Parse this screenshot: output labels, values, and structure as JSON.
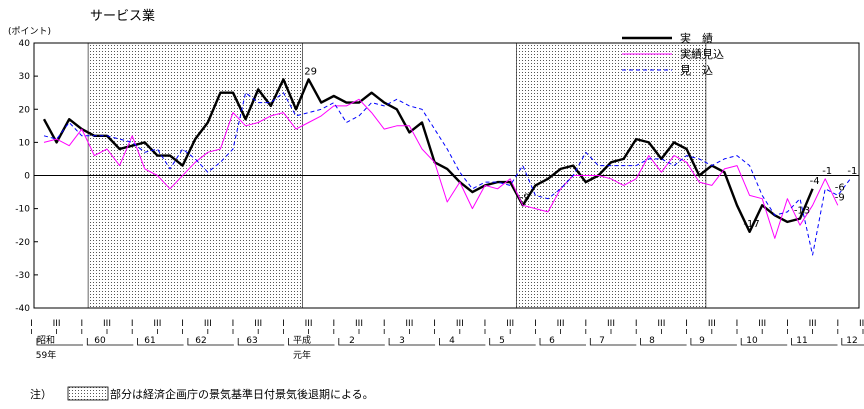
{
  "chart_data": {
    "type": "line",
    "title": "サービス業",
    "ylabel": "(ポイント)",
    "ylim": [
      -40,
      40
    ],
    "yticks": [
      40,
      30,
      20,
      10,
      0,
      -10,
      -20,
      -30,
      -40
    ],
    "quarter_labels": [
      "I",
      "III",
      "I",
      "III",
      "I",
      "III",
      "I",
      "III",
      "I",
      "III",
      "I",
      "III",
      "I",
      "III",
      "I",
      "III",
      "I",
      "III",
      "I",
      "III",
      "I",
      "III",
      "I",
      "III",
      "I",
      "III",
      "I",
      "III",
      "I",
      "III",
      "I",
      "III",
      "I",
      "III",
      "I",
      "III"
    ],
    "year_labels": [
      "昭和",
      "59年",
      "60",
      "61",
      "62",
      "63",
      "平成",
      "元年",
      "2",
      "3",
      "4",
      "5",
      "6",
      "7",
      "8",
      "9",
      "10",
      "11",
      "12"
    ],
    "shaded_periods": [
      [
        3,
        11
      ],
      [
        20,
        27
      ]
    ],
    "legend": [
      "実　績",
      "実績見込",
      "見　込"
    ],
    "series": [
      {
        "name": "実　績",
        "color": "#000000",
        "style": "solid-thick",
        "values": [
          17,
          10,
          17,
          14,
          12,
          12,
          8,
          9,
          10,
          6,
          6,
          3,
          11,
          16,
          25,
          25,
          17,
          26,
          21,
          29,
          20,
          29,
          22,
          24,
          22,
          22,
          25,
          22,
          20,
          13,
          16,
          4,
          2,
          -2,
          -5,
          -3,
          -2,
          -2,
          -9,
          -3,
          -1,
          2,
          3,
          -2,
          0,
          4,
          5,
          11,
          10,
          5,
          10,
          8,
          0,
          3,
          1,
          -9,
          -17,
          -9,
          -12,
          -14,
          -13,
          -4
        ]
      },
      {
        "name": "実績見込",
        "color": "#ff00ff",
        "style": "solid-thin",
        "values": [
          10,
          11,
          9,
          14,
          6,
          8,
          3,
          12,
          2,
          0,
          -4,
          0,
          4,
          7,
          8,
          19,
          15,
          16,
          18,
          19,
          14,
          16,
          18,
          21,
          21,
          23,
          19,
          14,
          15,
          15,
          8,
          4,
          -8,
          -2,
          -10,
          -3,
          -4,
          -1,
          -9,
          -10,
          -11,
          -4,
          0,
          0,
          0,
          -1,
          -3,
          -1,
          6,
          1,
          6,
          4,
          -2,
          -3,
          2,
          3,
          -6,
          -7,
          -19,
          -7,
          -15,
          -9,
          -1,
          -9
        ]
      },
      {
        "name": "見　込",
        "color": "#0000ff",
        "style": "dashed",
        "values": [
          12,
          11,
          16,
          12,
          12,
          12,
          11,
          10,
          7,
          8,
          2,
          8,
          5,
          1,
          4,
          8,
          25,
          22,
          22,
          25,
          18,
          19,
          20,
          22,
          16,
          18,
          22,
          21,
          23,
          21,
          20,
          14,
          8,
          1,
          -4,
          -2,
          -2,
          -3,
          3,
          -6,
          -7,
          -4,
          0,
          7,
          3,
          3,
          3,
          3,
          5,
          5,
          3,
          6,
          5,
          3,
          5,
          6,
          3,
          -6,
          -12,
          -11,
          -7,
          -24,
          -4,
          -6,
          -1
        ]
      }
    ],
    "annotations": [
      {
        "text": "29",
        "x": 21,
        "y": 29
      },
      {
        "text": "-9",
        "x": 38,
        "y": -9
      },
      {
        "text": "-17",
        "x": 56,
        "y": -17
      },
      {
        "text": "-13",
        "x": 60,
        "y": -13
      },
      {
        "text": "-4",
        "x": 61,
        "y": -4
      },
      {
        "text": "-1",
        "x": 62,
        "y": -1
      },
      {
        "text": "-9",
        "x": 63,
        "y": -9
      },
      {
        "text": "-6",
        "x": 63,
        "y": -6
      },
      {
        "text": "-1",
        "x": 64,
        "y": -1
      }
    ]
  },
  "note": {
    "label": "注）",
    "text": "部分は経済企画庁の景気基準日付景気後退期による。"
  }
}
